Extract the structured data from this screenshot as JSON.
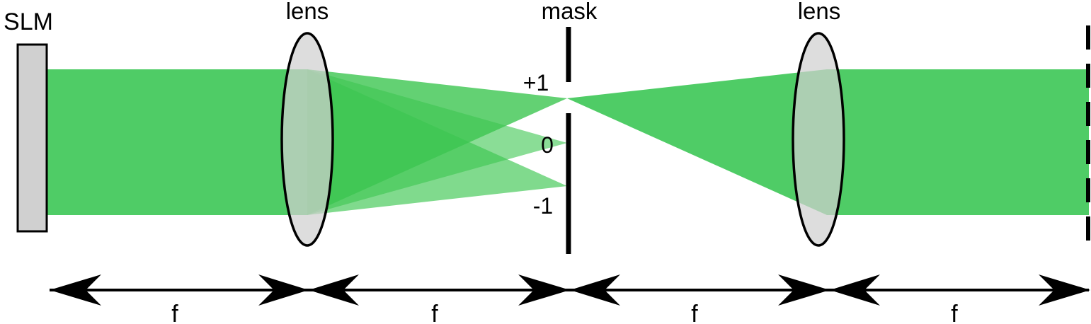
{
  "labels": {
    "slm": "SLM",
    "lens_1": "lens",
    "mask": "mask",
    "lens_2": "lens",
    "order_plus1": "+1",
    "order_0": "0",
    "order_minus1": "-1",
    "focal_lengths": [
      "f",
      "f",
      "f",
      "f"
    ]
  },
  "colors": {
    "beam": "#3cc650",
    "beam_light": "#8ee09a",
    "beam_dark": "#2fbf49",
    "element_fill": "#d0d0d0",
    "stroke": "#000000"
  }
}
